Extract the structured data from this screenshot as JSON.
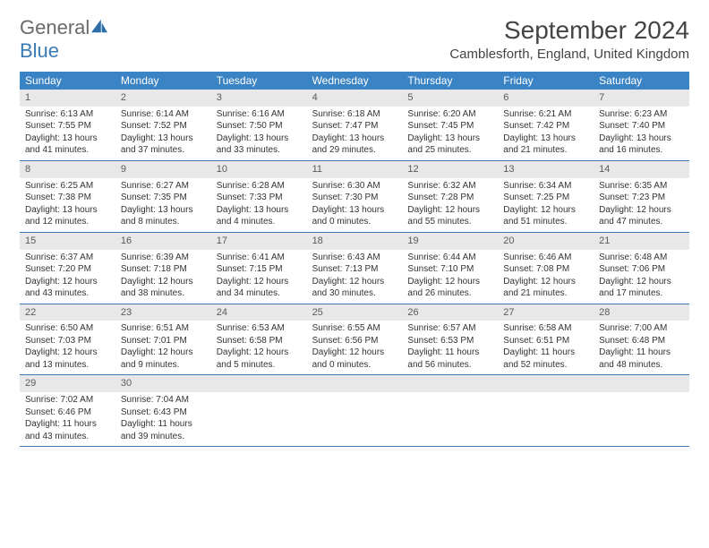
{
  "brand": {
    "word1": "General",
    "word2": "Blue"
  },
  "title": "September 2024",
  "location": "Camblesforth, England, United Kingdom",
  "colors": {
    "header_bg": "#3a83c4",
    "row_divider": "#3a7ab5",
    "daynum_bg": "#e8e8e8",
    "logo_gray": "#6a6a6a",
    "logo_blue": "#3a7ab5"
  },
  "dow": [
    "Sunday",
    "Monday",
    "Tuesday",
    "Wednesday",
    "Thursday",
    "Friday",
    "Saturday"
  ],
  "days": [
    {
      "n": "1",
      "sr": "6:13 AM",
      "ss": "7:55 PM",
      "dl": "13 hours and 41 minutes."
    },
    {
      "n": "2",
      "sr": "6:14 AM",
      "ss": "7:52 PM",
      "dl": "13 hours and 37 minutes."
    },
    {
      "n": "3",
      "sr": "6:16 AM",
      "ss": "7:50 PM",
      "dl": "13 hours and 33 minutes."
    },
    {
      "n": "4",
      "sr": "6:18 AM",
      "ss": "7:47 PM",
      "dl": "13 hours and 29 minutes."
    },
    {
      "n": "5",
      "sr": "6:20 AM",
      "ss": "7:45 PM",
      "dl": "13 hours and 25 minutes."
    },
    {
      "n": "6",
      "sr": "6:21 AM",
      "ss": "7:42 PM",
      "dl": "13 hours and 21 minutes."
    },
    {
      "n": "7",
      "sr": "6:23 AM",
      "ss": "7:40 PM",
      "dl": "13 hours and 16 minutes."
    },
    {
      "n": "8",
      "sr": "6:25 AM",
      "ss": "7:38 PM",
      "dl": "13 hours and 12 minutes."
    },
    {
      "n": "9",
      "sr": "6:27 AM",
      "ss": "7:35 PM",
      "dl": "13 hours and 8 minutes."
    },
    {
      "n": "10",
      "sr": "6:28 AM",
      "ss": "7:33 PM",
      "dl": "13 hours and 4 minutes."
    },
    {
      "n": "11",
      "sr": "6:30 AM",
      "ss": "7:30 PM",
      "dl": "13 hours and 0 minutes."
    },
    {
      "n": "12",
      "sr": "6:32 AM",
      "ss": "7:28 PM",
      "dl": "12 hours and 55 minutes."
    },
    {
      "n": "13",
      "sr": "6:34 AM",
      "ss": "7:25 PM",
      "dl": "12 hours and 51 minutes."
    },
    {
      "n": "14",
      "sr": "6:35 AM",
      "ss": "7:23 PM",
      "dl": "12 hours and 47 minutes."
    },
    {
      "n": "15",
      "sr": "6:37 AM",
      "ss": "7:20 PM",
      "dl": "12 hours and 43 minutes."
    },
    {
      "n": "16",
      "sr": "6:39 AM",
      "ss": "7:18 PM",
      "dl": "12 hours and 38 minutes."
    },
    {
      "n": "17",
      "sr": "6:41 AM",
      "ss": "7:15 PM",
      "dl": "12 hours and 34 minutes."
    },
    {
      "n": "18",
      "sr": "6:43 AM",
      "ss": "7:13 PM",
      "dl": "12 hours and 30 minutes."
    },
    {
      "n": "19",
      "sr": "6:44 AM",
      "ss": "7:10 PM",
      "dl": "12 hours and 26 minutes."
    },
    {
      "n": "20",
      "sr": "6:46 AM",
      "ss": "7:08 PM",
      "dl": "12 hours and 21 minutes."
    },
    {
      "n": "21",
      "sr": "6:48 AM",
      "ss": "7:06 PM",
      "dl": "12 hours and 17 minutes."
    },
    {
      "n": "22",
      "sr": "6:50 AM",
      "ss": "7:03 PM",
      "dl": "12 hours and 13 minutes."
    },
    {
      "n": "23",
      "sr": "6:51 AM",
      "ss": "7:01 PM",
      "dl": "12 hours and 9 minutes."
    },
    {
      "n": "24",
      "sr": "6:53 AM",
      "ss": "6:58 PM",
      "dl": "12 hours and 5 minutes."
    },
    {
      "n": "25",
      "sr": "6:55 AM",
      "ss": "6:56 PM",
      "dl": "12 hours and 0 minutes."
    },
    {
      "n": "26",
      "sr": "6:57 AM",
      "ss": "6:53 PM",
      "dl": "11 hours and 56 minutes."
    },
    {
      "n": "27",
      "sr": "6:58 AM",
      "ss": "6:51 PM",
      "dl": "11 hours and 52 minutes."
    },
    {
      "n": "28",
      "sr": "7:00 AM",
      "ss": "6:48 PM",
      "dl": "11 hours and 48 minutes."
    },
    {
      "n": "29",
      "sr": "7:02 AM",
      "ss": "6:46 PM",
      "dl": "11 hours and 43 minutes."
    },
    {
      "n": "30",
      "sr": "7:04 AM",
      "ss": "6:43 PM",
      "dl": "11 hours and 39 minutes."
    }
  ],
  "labels": {
    "sunrise": "Sunrise:",
    "sunset": "Sunset:",
    "daylight": "Daylight:"
  },
  "grid": {
    "cols": 7,
    "leading_blanks": 0,
    "trailing_blanks": 5
  }
}
